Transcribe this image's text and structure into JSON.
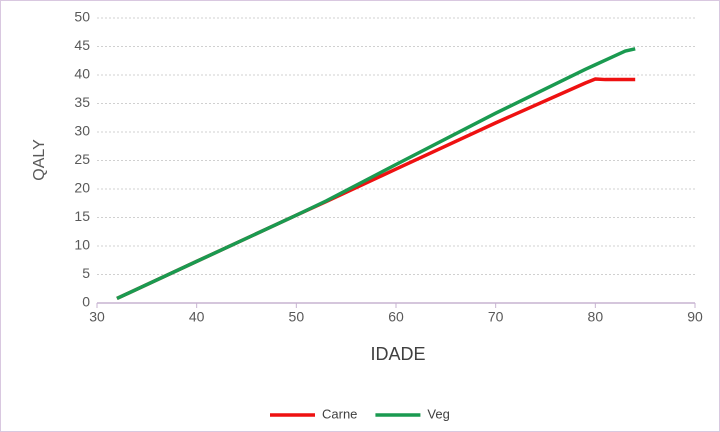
{
  "chart_data": {
    "type": "line",
    "x_label": "IDADE",
    "y_label": "QALY",
    "x": [
      32,
      40,
      50,
      53,
      60,
      70,
      79,
      80,
      81,
      83,
      84
    ],
    "series": [
      {
        "name": "Carne",
        "color": "#ee1111",
        "values": [
          0.8,
          7.3,
          15.4,
          17.8,
          23.5,
          31.6,
          38.6,
          39.3,
          39.2,
          39.2,
          39.2
        ]
      },
      {
        "name": "Veg",
        "color": "#1a9a50",
        "values": [
          0.8,
          7.3,
          15.4,
          17.9,
          24.3,
          33.3,
          41.0,
          41.8,
          42.6,
          44.2,
          44.6
        ]
      }
    ],
    "xlim": [
      30,
      90
    ],
    "xticks": [
      30,
      40,
      50,
      60,
      70,
      80,
      90
    ],
    "ylim": [
      0,
      50
    ],
    "yticks": [
      0,
      5,
      10,
      15,
      20,
      25,
      30,
      35,
      40,
      45,
      50
    ],
    "grid": true,
    "legend": "bottom"
  }
}
